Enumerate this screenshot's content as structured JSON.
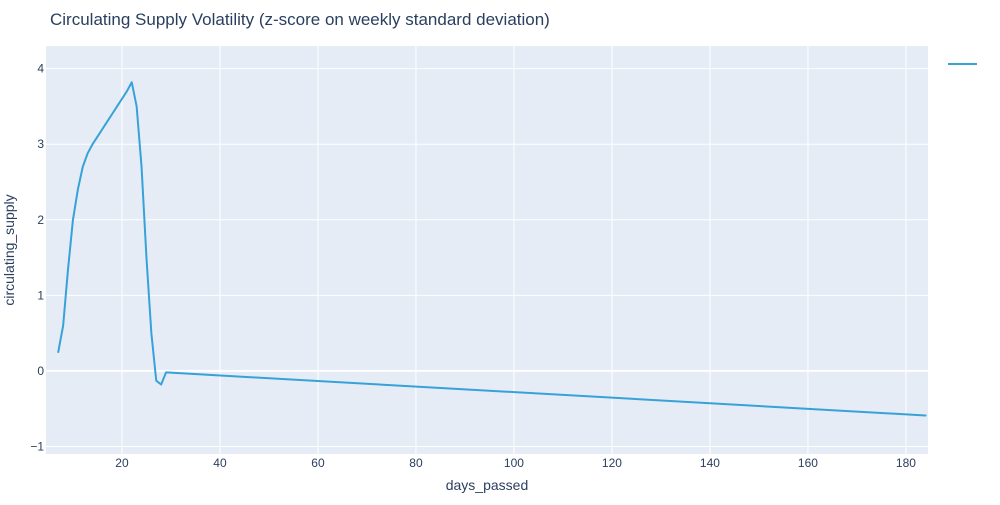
{
  "chart_data": {
    "type": "line",
    "title": "Circulating Supply Volatility (z-score on weekly standard deviation)",
    "xlabel": "days_passed",
    "ylabel": "circulating_supply",
    "xlim": [
      4.5,
      184.5
    ],
    "ylim": [
      -1.1,
      4.3
    ],
    "x_ticks": [
      20,
      40,
      60,
      80,
      100,
      120,
      140,
      160,
      180
    ],
    "y_ticks": [
      -1,
      0,
      1,
      2,
      3,
      4
    ],
    "x_tick_labels": [
      "20",
      "40",
      "60",
      "80",
      "100",
      "120",
      "140",
      "160",
      "180"
    ],
    "y_tick_labels": [
      "−1",
      "0",
      "1",
      "2",
      "3",
      "4"
    ],
    "grid": true,
    "legend_position": "top-right",
    "series": [
      {
        "name": "",
        "color": "#36a2d8",
        "x": [
          7,
          8,
          9,
          10,
          11,
          12,
          13,
          14,
          15,
          16,
          17,
          18,
          19,
          20,
          21,
          22,
          23,
          24,
          25,
          26,
          27,
          28,
          29,
          184
        ],
        "y": [
          0.25,
          0.6,
          1.35,
          2.0,
          2.4,
          2.7,
          2.88,
          3.0,
          3.1,
          3.2,
          3.3,
          3.4,
          3.5,
          3.6,
          3.7,
          3.82,
          3.5,
          2.7,
          1.5,
          0.5,
          -0.13,
          -0.18,
          -0.02,
          -0.59
        ]
      }
    ]
  },
  "colors": {
    "plot_background": "#e5ecf6",
    "grid": "#ffffff",
    "text": "#2a3f5f",
    "line": "#36a2d8"
  }
}
